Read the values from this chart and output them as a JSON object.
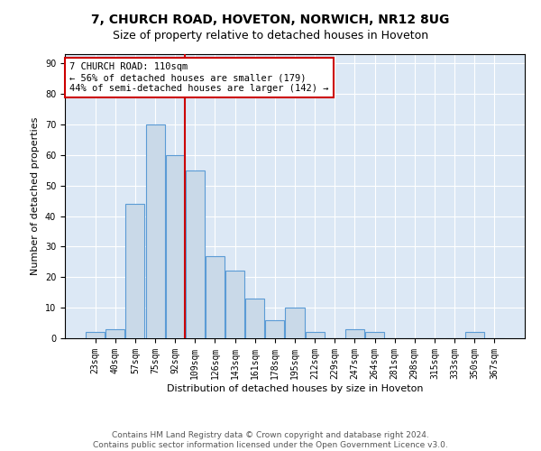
{
  "title": "7, CHURCH ROAD, HOVETON, NORWICH, NR12 8UG",
  "subtitle": "Size of property relative to detached houses in Hoveton",
  "xlabel": "Distribution of detached houses by size in Hoveton",
  "ylabel": "Number of detached properties",
  "categories": [
    "23sqm",
    "40sqm",
    "57sqm",
    "75sqm",
    "92sqm",
    "109sqm",
    "126sqm",
    "143sqm",
    "161sqm",
    "178sqm",
    "195sqm",
    "212sqm",
    "229sqm",
    "247sqm",
    "264sqm",
    "281sqm",
    "298sqm",
    "315sqm",
    "333sqm",
    "350sqm",
    "367sqm"
  ],
  "values": [
    2,
    3,
    44,
    70,
    60,
    55,
    27,
    22,
    13,
    6,
    10,
    2,
    0,
    3,
    2,
    0,
    0,
    0,
    0,
    2,
    0
  ],
  "bar_color": "#c9d9e8",
  "bar_edge_color": "#5b9bd5",
  "vline_index": 5,
  "vline_color": "#cc0000",
  "annotation_text": "7 CHURCH ROAD: 110sqm\n← 56% of detached houses are smaller (179)\n44% of semi-detached houses are larger (142) →",
  "annotation_box_color": "#ffffff",
  "annotation_box_edge": "#cc0000",
  "ylim": [
    0,
    93
  ],
  "yticks": [
    0,
    10,
    20,
    30,
    40,
    50,
    60,
    70,
    80,
    90
  ],
  "footer_line1": "Contains HM Land Registry data © Crown copyright and database right 2024.",
  "footer_line2": "Contains public sector information licensed under the Open Government Licence v3.0.",
  "background_color": "#ffffff",
  "plot_bg_color": "#dce8f5",
  "grid_color": "#ffffff",
  "title_fontsize": 10,
  "subtitle_fontsize": 9,
  "axis_label_fontsize": 8,
  "tick_fontsize": 7,
  "annotation_fontsize": 7.5,
  "footer_fontsize": 6.5
}
